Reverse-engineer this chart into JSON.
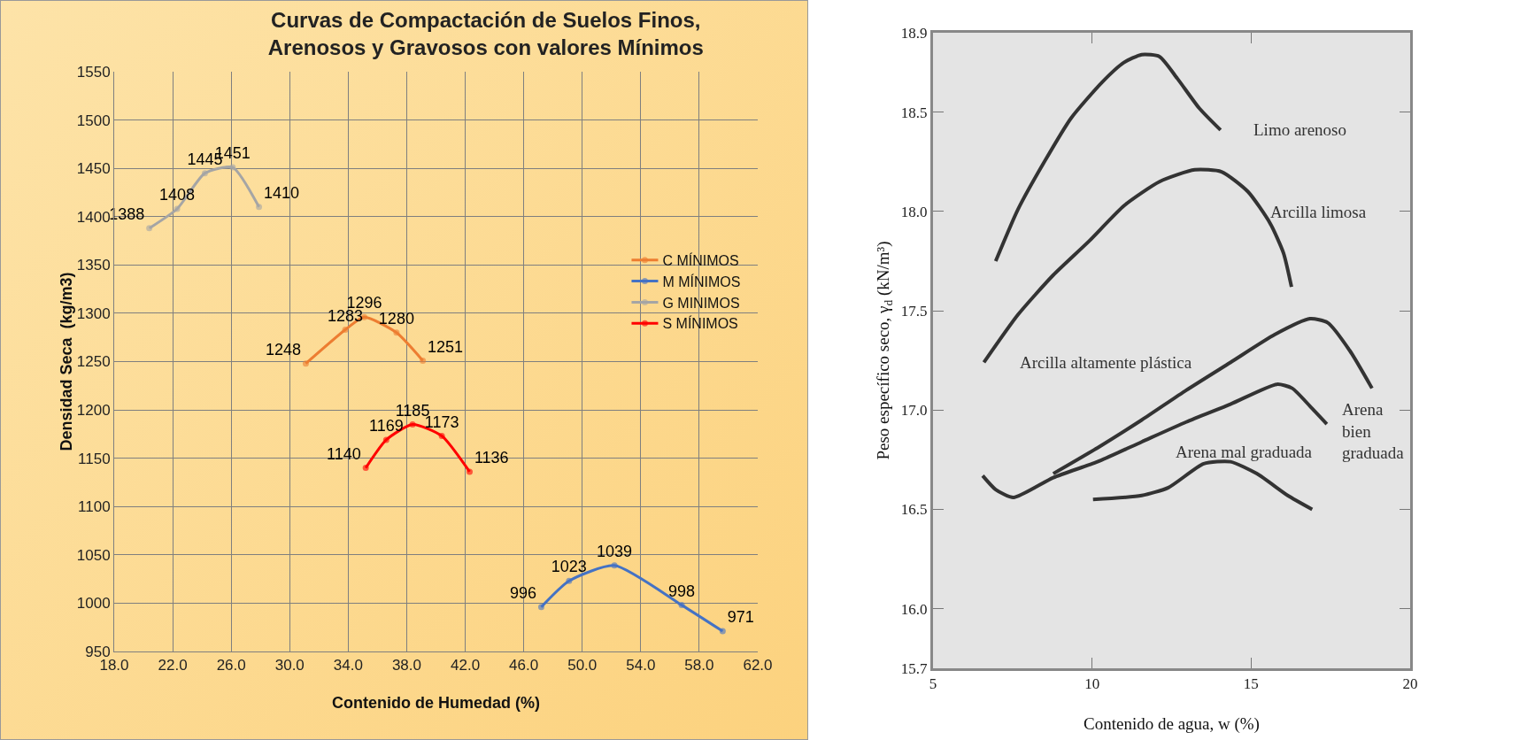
{
  "chart_data": [
    {
      "type": "line",
      "title": "Curvas de Compactación de Suelos Finos, Arenosos y Gravosos con valores Mínimos",
      "xlabel": "Contenido de Humedad (%)",
      "ylabel": "Densidad Seca  (kg/m3)",
      "xlim": [
        18,
        62
      ],
      "xticks": [
        {
          "value": 18,
          "label": "18.0"
        },
        {
          "value": 22,
          "label": "22.0"
        },
        {
          "value": 26,
          "label": "26.0"
        },
        {
          "value": 30,
          "label": "30.0"
        },
        {
          "value": 34,
          "label": "34.0"
        },
        {
          "value": 38,
          "label": "38.0"
        },
        {
          "value": 42,
          "label": "42.0"
        },
        {
          "value": 46,
          "label": "46.0"
        },
        {
          "value": 50,
          "label": "50.0"
        },
        {
          "value": 54,
          "label": "54.0"
        },
        {
          "value": 58,
          "label": "58.0"
        },
        {
          "value": 62,
          "label": "62.0"
        }
      ],
      "ylim": [
        950,
        1550
      ],
      "yticks": [
        950,
        1000,
        1050,
        1100,
        1150,
        1200,
        1250,
        1300,
        1350,
        1400,
        1450,
        1500,
        1550
      ],
      "grid": true,
      "legend": "right",
      "marker": "circle",
      "line_style": "solid",
      "data_labels": true,
      "series": [
        {
          "name": "C MÍNIMOS",
          "color": "#ed7d31",
          "x": [
            31.1,
            33.8,
            35.1,
            37.3,
            39.1
          ],
          "values": [
            1248,
            1283,
            1296,
            1280,
            1251
          ]
        },
        {
          "name": "M MÍNIMOS",
          "color": "#4472c4",
          "x": [
            47.2,
            49.1,
            52.2,
            56.8,
            59.6
          ],
          "values": [
            996,
            1023,
            1039,
            998,
            971
          ]
        },
        {
          "name": "G MINIMOS",
          "color": "#a5a5a5",
          "x": [
            20.4,
            22.3,
            24.2,
            26.1,
            27.9
          ],
          "values": [
            1388,
            1408,
            1445,
            1451,
            1410
          ]
        },
        {
          "name": "S MÍNIMOS",
          "color": "#ff0000",
          "x": [
            35.2,
            36.6,
            38.4,
            40.4,
            42.3
          ],
          "values": [
            1140,
            1169,
            1185,
            1173,
            1136
          ]
        }
      ]
    },
    {
      "type": "line",
      "xlabel": "Contenido de agua, w (%)",
      "ylabel": "Peso específico seco, γ$_{d}$ (kN/m³)",
      "xlim": [
        5,
        20
      ],
      "xticks": [
        5,
        10,
        15,
        20
      ],
      "ylim": [
        15.7,
        18.9
      ],
      "yticks": [
        15.7,
        {
          "value": 16,
          "label": "16.0"
        },
        16.5,
        {
          "value": 17,
          "label": "17.0"
        },
        17.5,
        {
          "value": 18,
          "label": "18.0"
        },
        18.5,
        18.9
      ],
      "grid": false,
      "legend": false,
      "marker": "none",
      "line_style": "solid",
      "series": [
        {
          "name": "Limo arenoso",
          "color": "#333333",
          "x": [
            6.97,
            7.67,
            8.5,
            9.34,
            10.31,
            11.0,
            11.56,
            12.12,
            12.68,
            13.37,
            14.04
          ],
          "values": [
            17.75,
            18.01,
            18.25,
            18.47,
            18.65,
            18.75,
            18.79,
            18.78,
            18.67,
            18.52,
            18.41
          ]
        },
        {
          "name": "Arcilla limosa",
          "color": "#333333",
          "x": [
            6.6,
            7.67,
            8.78,
            9.9,
            11.01,
            12.12,
            13.23,
            14.07,
            14.9,
            15.6,
            16.02,
            16.27
          ],
          "values": [
            17.24,
            17.48,
            17.68,
            17.85,
            18.03,
            18.15,
            18.21,
            18.2,
            18.1,
            17.94,
            17.79,
            17.62
          ]
        },
        {
          "name": "Arcilla altamente plástica",
          "color": "#333333",
          "x": [
            8.78,
            10.17,
            11.56,
            12.96,
            14.35,
            15.74,
            16.85,
            17.41,
            18.1,
            18.8
          ],
          "values": [
            16.68,
            16.81,
            16.95,
            17.1,
            17.24,
            17.38,
            17.46,
            17.44,
            17.3,
            17.11
          ]
        },
        {
          "name": "Arena\nbien\ngraduada",
          "color": "#333333",
          "x": [
            6.56,
            6.97,
            7.53,
            8.78,
            10.17,
            11.56,
            12.96,
            14.35,
            15.81,
            16.29,
            16.85,
            17.38
          ],
          "values": [
            16.67,
            16.6,
            16.56,
            16.66,
            16.74,
            16.84,
            16.94,
            17.03,
            17.13,
            17.11,
            17.02,
            16.93
          ]
        },
        {
          "name": "Arena mal graduada",
          "color": "#333333",
          "x": [
            10.03,
            11.56,
            12.4,
            13.51,
            14.35,
            15.18,
            16.15,
            16.92
          ],
          "values": [
            16.55,
            16.57,
            16.61,
            16.73,
            16.74,
            16.68,
            16.57,
            16.5
          ]
        }
      ]
    }
  ]
}
